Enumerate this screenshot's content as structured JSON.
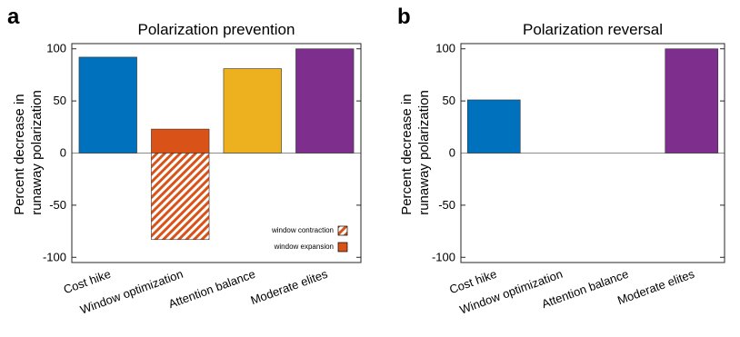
{
  "chart_data": [
    {
      "panel": "a",
      "type": "bar",
      "title": "Polarization prevention",
      "ylabel": "Percent decrease in runaway polarization",
      "xlabel": "",
      "ylim": [
        -105,
        105
      ],
      "yticks": [
        100,
        50,
        0,
        -50,
        -100
      ],
      "categories": [
        "Cost hike",
        "Window optimization",
        "Attention balance",
        "Moderate elites"
      ],
      "colors": [
        "#0072bd",
        "#d95319",
        "#edb120",
        "#7e2f8e"
      ],
      "values": [
        92,
        23,
        81,
        100
      ],
      "hatched_values": [
        null,
        -83,
        null,
        null
      ],
      "grid": false,
      "legend": {
        "placement": "bottom-right",
        "entries": [
          {
            "label": "window contraction",
            "style": "hatched",
            "color": "#d95319"
          },
          {
            "label": "window expansion",
            "style": "solid",
            "color": "#d95319"
          }
        ]
      }
    },
    {
      "panel": "b",
      "type": "bar",
      "title": "Polarization reversal",
      "ylabel": "Percent decrease in runaway polarization",
      "xlabel": "",
      "ylim": [
        -105,
        105
      ],
      "yticks": [
        100,
        50,
        0,
        -50,
        -100
      ],
      "categories": [
        "Cost hike",
        "Window optimization",
        "Attention balance",
        "Moderate elites"
      ],
      "colors": [
        "#0072bd",
        "#d95319",
        "#edb120",
        "#7e2f8e"
      ],
      "values": [
        51,
        0,
        0,
        100
      ],
      "grid": false
    }
  ]
}
